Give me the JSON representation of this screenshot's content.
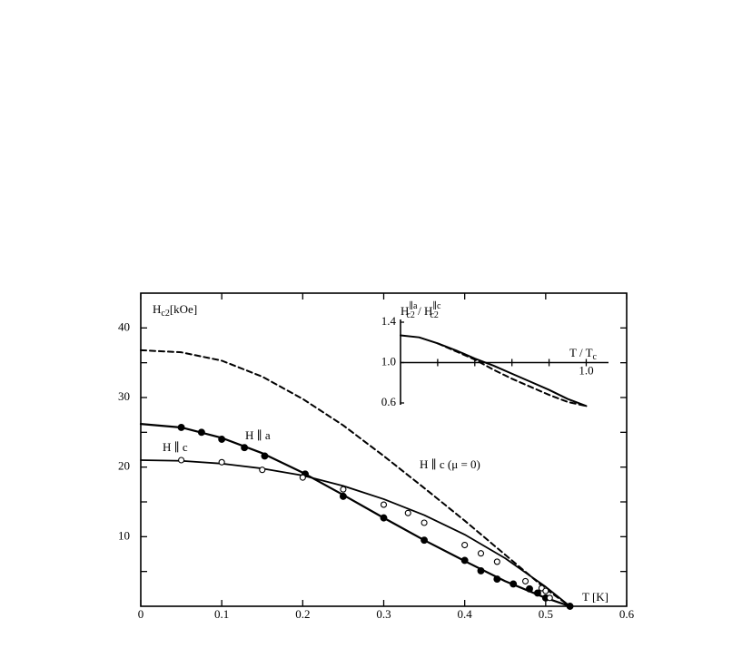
{
  "chart_data": [
    {
      "type": "line",
      "frame": "box",
      "x_label": "T [K]",
      "y_label": [
        "H",
        "c2",
        "[kOe]"
      ],
      "xlim": [
        0,
        0.6
      ],
      "ylim": [
        0,
        45
      ],
      "xticks": [
        0,
        0.1,
        0.2,
        0.3,
        0.4,
        0.5,
        0.6
      ],
      "yticks": [
        10,
        20,
        30,
        40
      ],
      "y_minor_ticks": [
        5,
        15,
        25,
        35
      ],
      "series": [
        {
          "name": "H ∥ a",
          "color": "#000000",
          "dash": false,
          "width": 2.2,
          "x": [
            0,
            0.05,
            0.1,
            0.15,
            0.2,
            0.25,
            0.3,
            0.35,
            0.4,
            0.45,
            0.5,
            0.53
          ],
          "values": [
            26.2,
            25.7,
            24.2,
            22,
            19.2,
            16,
            12.7,
            9.5,
            6.5,
            3.6,
            1.2,
            0
          ]
        },
        {
          "name": "H ∥ c",
          "color": "#000000",
          "dash": false,
          "width": 1.8,
          "x": [
            0,
            0.05,
            0.1,
            0.15,
            0.2,
            0.25,
            0.3,
            0.35,
            0.4,
            0.45,
            0.5,
            0.53
          ],
          "values": [
            21,
            20.9,
            20.5,
            19.8,
            18.8,
            17.3,
            15.4,
            13.1,
            10.3,
            6.9,
            2.8,
            0
          ]
        },
        {
          "name": "H ∥ c (μ = 0)",
          "color": "#000000",
          "dash": true,
          "width": 2,
          "x": [
            0,
            0.05,
            0.1,
            0.15,
            0.2,
            0.25,
            0.3,
            0.35,
            0.4,
            0.45,
            0.5,
            0.53
          ],
          "values": [
            36.8,
            36.5,
            35.3,
            33,
            29.8,
            26,
            21.6,
            17,
            12.3,
            7.4,
            2.5,
            0
          ]
        },
        {
          "marker": "filled",
          "color": "#000000",
          "x": [
            0.05,
            0.075,
            0.1,
            0.128,
            0.153,
            0.203,
            0.25,
            0.3,
            0.35,
            0.4,
            0.42,
            0.44,
            0.46,
            0.48,
            0.49,
            0.5,
            0.53
          ],
          "values": [
            25.7,
            25,
            24,
            22.8,
            21.6,
            19,
            15.8,
            12.7,
            9.5,
            6.6,
            5.1,
            3.9,
            3.2,
            2.5,
            1.9,
            1.2,
            0
          ]
        },
        {
          "marker": "open",
          "color": "#000000",
          "x": [
            0.05,
            0.1,
            0.15,
            0.2,
            0.25,
            0.3,
            0.33,
            0.35,
            0.4,
            0.42,
            0.44,
            0.475,
            0.495,
            0.5,
            0.505
          ],
          "values": [
            21,
            20.7,
            19.6,
            18.5,
            16.8,
            14.6,
            13.4,
            12,
            8.8,
            7.6,
            6.4,
            3.6,
            2.6,
            2.2,
            1.2
          ]
        }
      ]
    },
    {
      "type": "line",
      "frame": "axes",
      "x_axis_crossing": 1,
      "title": [
        "H",
        "∥a",
        "c2",
        " / ",
        "H",
        "∥c",
        "c2"
      ],
      "x_label": [
        "T / T",
        "c"
      ],
      "xlim": [
        0,
        1.12
      ],
      "ylim": [
        0.6,
        1.4
      ],
      "xticks": [
        {
          "value": 1,
          "label": "1.0"
        }
      ],
      "x_minor_ticks": [
        0.2,
        0.4,
        0.6,
        0.8
      ],
      "yticks": [
        {
          "value": 0.6,
          "label": "0.6"
        },
        {
          "value": 1,
          "label": "1.0"
        },
        {
          "value": 1.4,
          "label": "1.4"
        }
      ],
      "series": [
        {
          "color": "#000000",
          "dash": false,
          "width": 2,
          "x": [
            0,
            0.1,
            0.2,
            0.3,
            0.4,
            0.5,
            0.6,
            0.7,
            0.8,
            0.9,
            1.0
          ],
          "values": [
            1.27,
            1.25,
            1.19,
            1.12,
            1.04,
            0.97,
            0.89,
            0.81,
            0.73,
            0.64,
            0.57
          ]
        },
        {
          "color": "#000000",
          "dash": true,
          "width": 2,
          "x": [
            0.2,
            0.3,
            0.4,
            0.5,
            0.6,
            0.7,
            0.8,
            0.9,
            1.0
          ],
          "values": [
            1.19,
            1.11,
            1.03,
            0.93,
            0.84,
            0.76,
            0.68,
            0.61,
            0.57
          ]
        }
      ]
    }
  ]
}
